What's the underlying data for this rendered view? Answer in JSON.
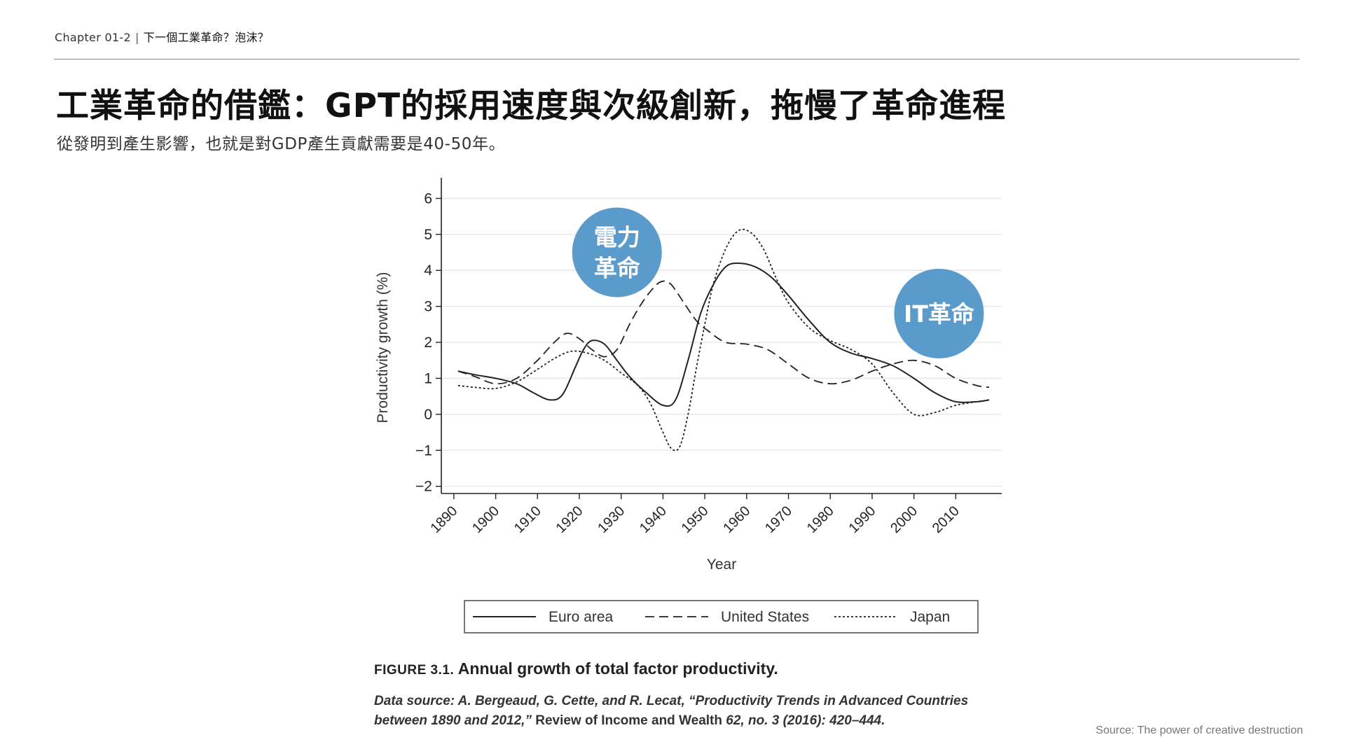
{
  "header": {
    "chapter": "Chapter 01-2",
    "separator": "|",
    "topic": "下一個工業革命？泡沫？"
  },
  "title": "工業革命的借鑑：GPT的採用速度與次級創新，拖慢了革命進程",
  "subtitle": "從發明到產生影響，也就是對GDP產生貢獻需要是40-50年。",
  "colors": {
    "bubble": "#5b9bcc",
    "line": "#222222",
    "grid": "#e6e6e6",
    "legend_border": "#555555"
  },
  "chart_data": {
    "type": "line",
    "xlabel": "Year",
    "ylabel": "Productivity growth (%)",
    "xlim": [
      1887,
      2021
    ],
    "ylim": [
      -2.2,
      6.3
    ],
    "xticks": [
      1890,
      1900,
      1910,
      1920,
      1930,
      1940,
      1950,
      1960,
      1970,
      1980,
      1990,
      2000,
      2010
    ],
    "xtick_labels": [
      "1890",
      "1900",
      "1910",
      "1920",
      "1930",
      "1940",
      "1950",
      "1960",
      "1970",
      "1980",
      "1990",
      "2000",
      "2010"
    ],
    "yticks": [
      -2,
      -1,
      0,
      1,
      2,
      3,
      4,
      5,
      6
    ],
    "ytick_labels": [
      "−2",
      "−1",
      "0",
      "1",
      "2",
      "3",
      "4",
      "5",
      "6"
    ],
    "grid": true,
    "series": [
      {
        "name": "Euro area",
        "style": "solid",
        "x": [
          1891,
          1895,
          1900,
          1905,
          1909,
          1913,
          1916,
          1919,
          1921,
          1923,
          1926,
          1929,
          1932,
          1936,
          1940,
          1943,
          1946,
          1949,
          1952,
          1955,
          1958,
          1962,
          1966,
          1970,
          1975,
          1980,
          1985,
          1990,
          1995,
          2000,
          2005,
          2010,
          2015,
          2018
        ],
        "y": [
          1.2,
          1.1,
          1.0,
          0.85,
          0.6,
          0.4,
          0.55,
          1.3,
          1.8,
          2.05,
          1.95,
          1.5,
          1.05,
          0.6,
          0.25,
          0.4,
          1.5,
          2.8,
          3.6,
          4.1,
          4.2,
          4.1,
          3.8,
          3.3,
          2.6,
          2.0,
          1.7,
          1.55,
          1.35,
          1.0,
          0.6,
          0.35,
          0.35,
          0.4
        ]
      },
      {
        "name": "United States",
        "style": "dashed",
        "x": [
          1891,
          1895,
          1900,
          1905,
          1910,
          1914,
          1917,
          1920,
          1923,
          1926,
          1929,
          1932,
          1935,
          1938,
          1940,
          1942,
          1945,
          1948,
          1951,
          1955,
          1960,
          1965,
          1970,
          1975,
          1980,
          1985,
          1990,
          1995,
          2000,
          2005,
          2010,
          2015,
          2018
        ],
        "y": [
          1.2,
          1.05,
          0.85,
          1.0,
          1.5,
          2.0,
          2.25,
          2.1,
          1.8,
          1.6,
          1.8,
          2.5,
          3.1,
          3.55,
          3.7,
          3.6,
          3.1,
          2.6,
          2.3,
          2.0,
          1.95,
          1.8,
          1.4,
          1.0,
          0.85,
          0.95,
          1.2,
          1.4,
          1.5,
          1.35,
          1.0,
          0.8,
          0.75
        ]
      },
      {
        "name": "Japan",
        "style": "dotted",
        "x": [
          1891,
          1895,
          1900,
          1905,
          1910,
          1914,
          1918,
          1922,
          1926,
          1930,
          1934,
          1937,
          1940,
          1942,
          1944,
          1946,
          1948,
          1950,
          1952,
          1955,
          1958,
          1961,
          1964,
          1967,
          1970,
          1975,
          1980,
          1985,
          1990,
          1995,
          2000,
          2005,
          2010,
          2015,
          2018
        ],
        "y": [
          0.8,
          0.75,
          0.72,
          0.9,
          1.25,
          1.55,
          1.75,
          1.7,
          1.5,
          1.15,
          0.8,
          0.3,
          -0.5,
          -0.95,
          -0.9,
          0.0,
          1.3,
          2.5,
          3.6,
          4.6,
          5.1,
          5.05,
          4.6,
          3.8,
          3.1,
          2.4,
          2.05,
          1.8,
          1.4,
          0.6,
          0.0,
          0.05,
          0.25,
          0.35,
          0.4
        ]
      }
    ],
    "annotations": [
      {
        "label_lines": [
          "電力",
          "革命"
        ],
        "x": 1929,
        "y": 4.5
      },
      {
        "label_lines": [
          "IT革命"
        ],
        "x": 2006,
        "y": 2.8
      }
    ],
    "legend": {
      "position": "bottom",
      "entries": [
        "Euro area",
        "United States",
        "Japan"
      ]
    }
  },
  "figure": {
    "label": "FIGURE 3.1.",
    "title": "Annual growth of total factor productivity.",
    "source_prefix": "Data source: A. Bergeaud, G. Cette, and R. Lecat, “Productivity Trends in Advanced Countries between 1890 and 2012,”",
    "source_journal": " Review of Income and Wealth ",
    "source_suffix": "62, no. 3 (2016): 420–444."
  },
  "source_note": "Source: The power of creative destruction"
}
